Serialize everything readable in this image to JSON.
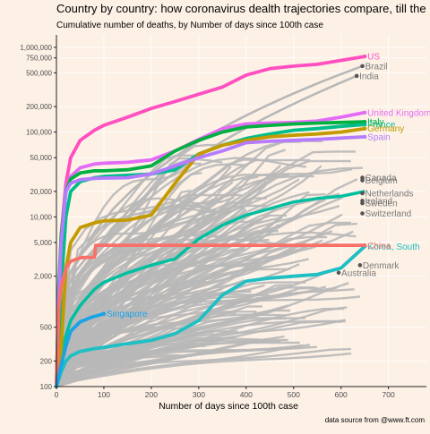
{
  "chart_data": {
    "type": "line",
    "title": "Country by country: how coronavirus dealth trajectories compare, till the",
    "subtitle": "Cumulative number of deaths, by Number of days since 100th case",
    "xlabel": "Number of days since 100th case",
    "ylabel": "",
    "caption": "data source from @www.ft.com",
    "x_scale": "linear",
    "y_scale": "log10",
    "xlim": [
      0,
      780
    ],
    "ylim": [
      100,
      1400000
    ],
    "x_ticks": [
      0,
      100,
      200,
      300,
      400,
      500,
      600,
      700
    ],
    "y_ticks": [
      {
        "value": 100,
        "label": "100"
      },
      {
        "value": 200,
        "label": "200"
      },
      {
        "value": 500,
        "label": "500"
      },
      {
        "value": 2000,
        "label": "2,000"
      },
      {
        "value": 5000,
        "label": "5,000"
      },
      {
        "value": 10000,
        "label": "10,000"
      },
      {
        "value": 20000,
        "label": "20,000"
      },
      {
        "value": 50000,
        "label": "50,000"
      },
      {
        "value": 100000,
        "label": "100,000"
      },
      {
        "value": 200000,
        "label": "200,000"
      },
      {
        "value": 500000,
        "label": "500,000"
      },
      {
        "value": 750000,
        "label": "750,000"
      },
      {
        "value": 1000000,
        "label": "1,000,000"
      }
    ],
    "grid": true,
    "legend": "none",
    "colors": {
      "background": "#fdf1e6",
      "grid": "#ffffff",
      "other_countries": "#b8b8b8",
      "label_gray": "#7a7a7a"
    },
    "highlighted_series": [
      {
        "name": "US",
        "color": "#ff4fc0",
        "label_value": 780000,
        "x": [
          0,
          5,
          10,
          20,
          30,
          50,
          80,
          100,
          150,
          200,
          250,
          300,
          350,
          400,
          450,
          500,
          550,
          600,
          650
        ],
        "y": [
          100,
          1000,
          6000,
          25000,
          50000,
          80000,
          105000,
          120000,
          150000,
          190000,
          230000,
          280000,
          340000,
          470000,
          560000,
          600000,
          630000,
          700000,
          780000
        ]
      },
      {
        "name": "United Kingdom",
        "color": "#e46bf5",
        "label_value": 170000,
        "x": [
          0,
          5,
          10,
          20,
          30,
          50,
          80,
          100,
          150,
          200,
          250,
          300,
          350,
          400,
          450,
          500,
          550,
          600,
          650
        ],
        "y": [
          100,
          800,
          5000,
          22000,
          30000,
          38000,
          42000,
          43000,
          44000,
          47000,
          60000,
          82000,
          110000,
          125000,
          128000,
          130000,
          135000,
          150000,
          170000
        ]
      },
      {
        "name": "Italy",
        "color": "#00b040",
        "label_value": 132000,
        "x": [
          0,
          5,
          10,
          20,
          30,
          50,
          80,
          100,
          150,
          200,
          250,
          300,
          350,
          400,
          450,
          500,
          550,
          600,
          650
        ],
        "y": [
          100,
          1500,
          6000,
          20000,
          28000,
          33000,
          35000,
          35000,
          36000,
          40000,
          60000,
          80000,
          100000,
          115000,
          120000,
          125000,
          128000,
          130000,
          132000
        ]
      },
      {
        "name": "France",
        "color": "#00bd8a",
        "label_value": 123000,
        "x": [
          0,
          5,
          10,
          20,
          30,
          50,
          80,
          100,
          150,
          200,
          250,
          300,
          350,
          400,
          450,
          500,
          550,
          600,
          650
        ],
        "y": [
          100,
          300,
          1500,
          10000,
          20000,
          26000,
          29000,
          30000,
          31000,
          32000,
          36000,
          55000,
          70000,
          84000,
          95000,
          105000,
          110000,
          117000,
          123000
        ]
      },
      {
        "name": "Germany",
        "color": "#c49a00",
        "label_value": 110000,
        "x": [
          0,
          5,
          10,
          20,
          30,
          50,
          80,
          100,
          150,
          200,
          250,
          300,
          350,
          400,
          450,
          500,
          550,
          600,
          650
        ],
        "y": [
          100,
          150,
          300,
          2500,
          5000,
          7500,
          8500,
          9000,
          9200,
          10500,
          25000,
          55000,
          70000,
          80000,
          88000,
          92000,
          95000,
          100000,
          110000
        ]
      },
      {
        "name": "Spain",
        "color": "#b57cff",
        "label_value": 88000,
        "x": [
          0,
          5,
          10,
          20,
          30,
          50,
          80,
          100,
          150,
          200,
          250,
          300,
          350,
          400,
          450,
          500,
          550,
          600,
          650
        ],
        "y": [
          100,
          1200,
          5000,
          20000,
          25000,
          27500,
          28500,
          28700,
          29000,
          32000,
          40000,
          50000,
          60000,
          75000,
          78000,
          80000,
          82000,
          85000,
          88000
        ]
      },
      {
        "name": "Korea, South",
        "color": "#1fbfc4",
        "label_value": 4500,
        "x": [
          0,
          10,
          20,
          30,
          50,
          80,
          100,
          150,
          200,
          250,
          300,
          350,
          400,
          450,
          500,
          550,
          600,
          650
        ],
        "y": [
          100,
          150,
          200,
          230,
          260,
          280,
          290,
          320,
          350,
          420,
          600,
          1200,
          1750,
          1900,
          2000,
          2100,
          2500,
          4500
        ]
      },
      {
        "name": "China",
        "color": "#f87068",
        "label_value": 4600,
        "x": [
          0,
          5,
          10,
          20,
          30,
          50,
          60,
          70,
          80,
          83,
          90,
          150,
          200,
          300,
          400,
          500,
          600,
          650
        ],
        "y": [
          100,
          800,
          1500,
          2500,
          3000,
          3300,
          3330,
          3340,
          3345,
          4630,
          4630,
          4634,
          4634,
          4634,
          4636,
          4636,
          4636,
          4636
        ]
      },
      {
        "name": "Singapore",
        "color": "#1aa3e6",
        "label_value": 720,
        "x": [
          0,
          10,
          20,
          30,
          50,
          75,
          100
        ],
        "y": [
          100,
          180,
          300,
          450,
          580,
          660,
          720
        ]
      }
    ],
    "teal_highlight": {
      "name": "",
      "color": "#00bfa0",
      "x": [
        0,
        10,
        20,
        30,
        50,
        80,
        100,
        150,
        200,
        250,
        300,
        350,
        400,
        450,
        500,
        550,
        600,
        650
      ],
      "y": [
        100,
        250,
        400,
        600,
        900,
        1400,
        1700,
        2200,
        2700,
        3200,
        5500,
        8000,
        10500,
        12500,
        15000,
        16500,
        17500,
        20000
      ]
    },
    "gray_labels": [
      {
        "name": "Brazil",
        "x": 645,
        "value": 600000
      },
      {
        "name": "India",
        "x": 633,
        "value": 460000
      },
      {
        "name": "Canada",
        "x": 645,
        "value": 29000
      },
      {
        "name": "Belgium",
        "x": 645,
        "value": 27000
      },
      {
        "name": "Netherlands",
        "x": 645,
        "value": 19000
      },
      {
        "name": "Ireland",
        "x": 645,
        "value": 15500
      },
      {
        "name": "Sweden",
        "x": 645,
        "value": 14500
      },
      {
        "name": "Switzerland",
        "x": 645,
        "value": 11000
      },
      {
        "name": "Denmark",
        "x": 640,
        "value": 2700
      },
      {
        "name": "Australia",
        "x": 595,
        "value": 2200
      }
    ]
  }
}
